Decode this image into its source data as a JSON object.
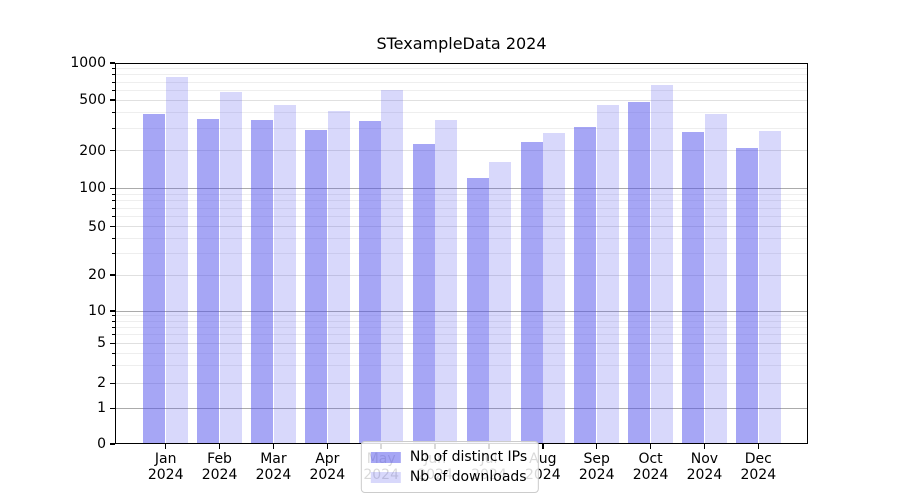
{
  "figure": {
    "background": "#ffffff"
  },
  "chart_data": {
    "type": "bar",
    "title": "STexampleData 2024",
    "categories": [
      "Jan",
      "Feb",
      "Mar",
      "Apr",
      "May",
      "Jun",
      "Jul",
      "Aug",
      "Sep",
      "Oct",
      "Nov",
      "Dec"
    ],
    "category_year": "2024",
    "series": [
      {
        "name": "Nb of distinct IPs",
        "color": "rgba(77,77,235,0.50)",
        "values": [
          390,
          355,
          350,
          290,
          345,
          225,
          122,
          235,
          305,
          480,
          280,
          210
        ]
      },
      {
        "name": "Nb of downloads",
        "color": "rgba(77,77,235,0.22)",
        "values": [
          765,
          585,
          455,
          410,
          605,
          350,
          161,
          275,
          460,
          665,
          385,
          285
        ]
      }
    ],
    "xlabel": "",
    "ylabel": "",
    "yscale": "pseudo-log",
    "ylim": [
      0,
      1000
    ],
    "yticks": [
      0,
      1,
      2,
      5,
      10,
      20,
      50,
      100,
      200,
      500,
      1000
    ],
    "minor_yticks": [
      3,
      4,
      6,
      7,
      8,
      9,
      30,
      40,
      60,
      70,
      80,
      90,
      300,
      400,
      600,
      700,
      800,
      900
    ],
    "grid": true,
    "legend_position": "lower center"
  },
  "colors": {
    "grid_decade": "#ababab",
    "grid_mid": "#e0e0e0",
    "grid_minor": "#eeeeee",
    "axis": "#000000"
  }
}
